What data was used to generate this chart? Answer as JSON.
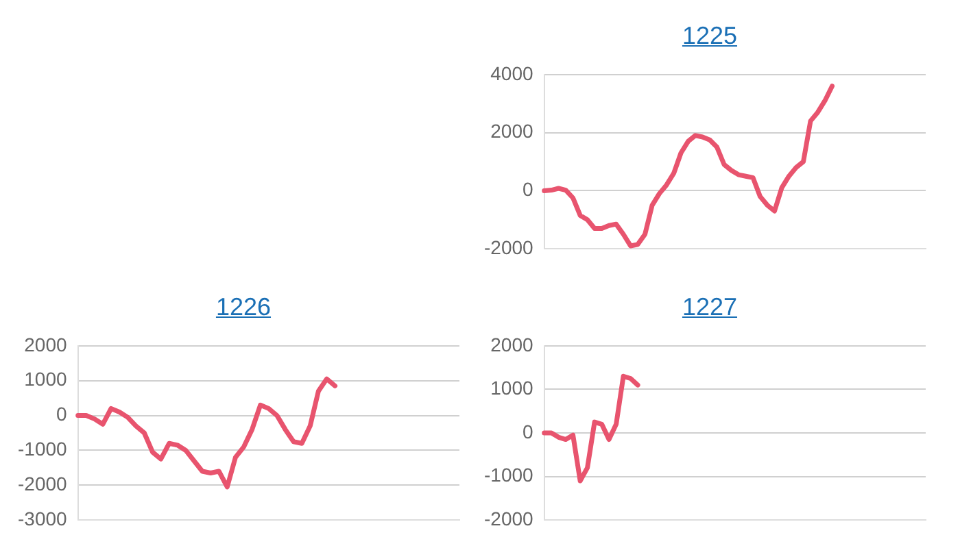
{
  "chart_data": [
    {
      "type": "line",
      "title": "1225",
      "categories": [
        null,
        null,
        null,
        null,
        null,
        null,
        null,
        null,
        null,
        null,
        null,
        null,
        null,
        null,
        null,
        null,
        null,
        null,
        null,
        null,
        null,
        null,
        null,
        null,
        null,
        null,
        null,
        null,
        null,
        null,
        null,
        null,
        null,
        null,
        null,
        null,
        null,
        null,
        null,
        null,
        null,
        null,
        null,
        null,
        null,
        null,
        null,
        null,
        null,
        null,
        null,
        null,
        null,
        null
      ],
      "series": [
        {
          "color": "#e8546e",
          "values": [
            0,
            20,
            80,
            20,
            -250,
            -850,
            -1000,
            -1300,
            -1300,
            -1200,
            -1150,
            -1500,
            -1900,
            -1850,
            -1500,
            -500,
            -100,
            200,
            600,
            1300,
            1700,
            1900,
            1850,
            1750,
            1500,
            900,
            700,
            550,
            500,
            450,
            -200,
            -500,
            -700,
            100,
            500,
            800,
            1000,
            2400,
            2700,
            3100,
            3600,
            null,
            null,
            null,
            null,
            null,
            null,
            null,
            null,
            null,
            null,
            null,
            null,
            null
          ]
        }
      ],
      "ylim": [
        -2000,
        4000
      ],
      "yticks": [
        -2000,
        0,
        2000,
        4000
      ],
      "grid": "y",
      "tick_labels": "y",
      "marker": "none",
      "line_style": "solid"
    },
    {
      "type": "line",
      "title": "1226",
      "categories": [
        null,
        null,
        null,
        null,
        null,
        null,
        null,
        null,
        null,
        null,
        null,
        null,
        null,
        null,
        null,
        null,
        null,
        null,
        null,
        null,
        null,
        null,
        null,
        null,
        null,
        null,
        null,
        null,
        null,
        null,
        null,
        null,
        null,
        null,
        null,
        null,
        null,
        null,
        null,
        null,
        null,
        null,
        null,
        null,
        null,
        null,
        null
      ],
      "series": [
        {
          "color": "#e8546e",
          "values": [
            0,
            0,
            -100,
            -250,
            200,
            100,
            -50,
            -300,
            -500,
            -1050,
            -1250,
            -800,
            -850,
            -1000,
            -1300,
            -1600,
            -1650,
            -1600,
            -2050,
            -1200,
            -900,
            -400,
            300,
            200,
            0,
            -400,
            -750,
            -800,
            -300,
            700,
            1050,
            850,
            null,
            null,
            null,
            null,
            null,
            null,
            null,
            null,
            null,
            null,
            null,
            null,
            null,
            null,
            null
          ]
        }
      ],
      "ylim": [
        -3000,
        2000
      ],
      "yticks": [
        -3000,
        -2000,
        -1000,
        0,
        1000,
        2000
      ],
      "grid": "y",
      "tick_labels": "y",
      "marker": "none",
      "line_style": "solid"
    },
    {
      "type": "line",
      "title": "1227",
      "categories": [
        null,
        null,
        null,
        null,
        null,
        null,
        null,
        null,
        null,
        null,
        null,
        null,
        null,
        null,
        null,
        null,
        null,
        null,
        null,
        null,
        null,
        null,
        null,
        null,
        null,
        null,
        null,
        null,
        null,
        null,
        null,
        null,
        null,
        null,
        null,
        null,
        null,
        null,
        null,
        null,
        null,
        null,
        null,
        null,
        null,
        null,
        null,
        null,
        null,
        null,
        null,
        null,
        null,
        null
      ],
      "series": [
        {
          "color": "#e8546e",
          "values": [
            0,
            0,
            -100,
            -150,
            -50,
            -1100,
            -800,
            250,
            200,
            -150,
            200,
            1300,
            1250,
            1100,
            null,
            null,
            null,
            null,
            null,
            null,
            null,
            null,
            null,
            null,
            null,
            null,
            null,
            null,
            null,
            null,
            null,
            null,
            null,
            null,
            null,
            null,
            null,
            null,
            null,
            null,
            null,
            null,
            null,
            null,
            null,
            null,
            null,
            null,
            null,
            null,
            null,
            null,
            null,
            null
          ]
        }
      ],
      "ylim": [
        -2000,
        2000
      ],
      "yticks": [
        -2000,
        -1000,
        0,
        1000,
        2000
      ],
      "grid": "y",
      "tick_labels": "y",
      "marker": "none",
      "line_style": "solid"
    }
  ]
}
